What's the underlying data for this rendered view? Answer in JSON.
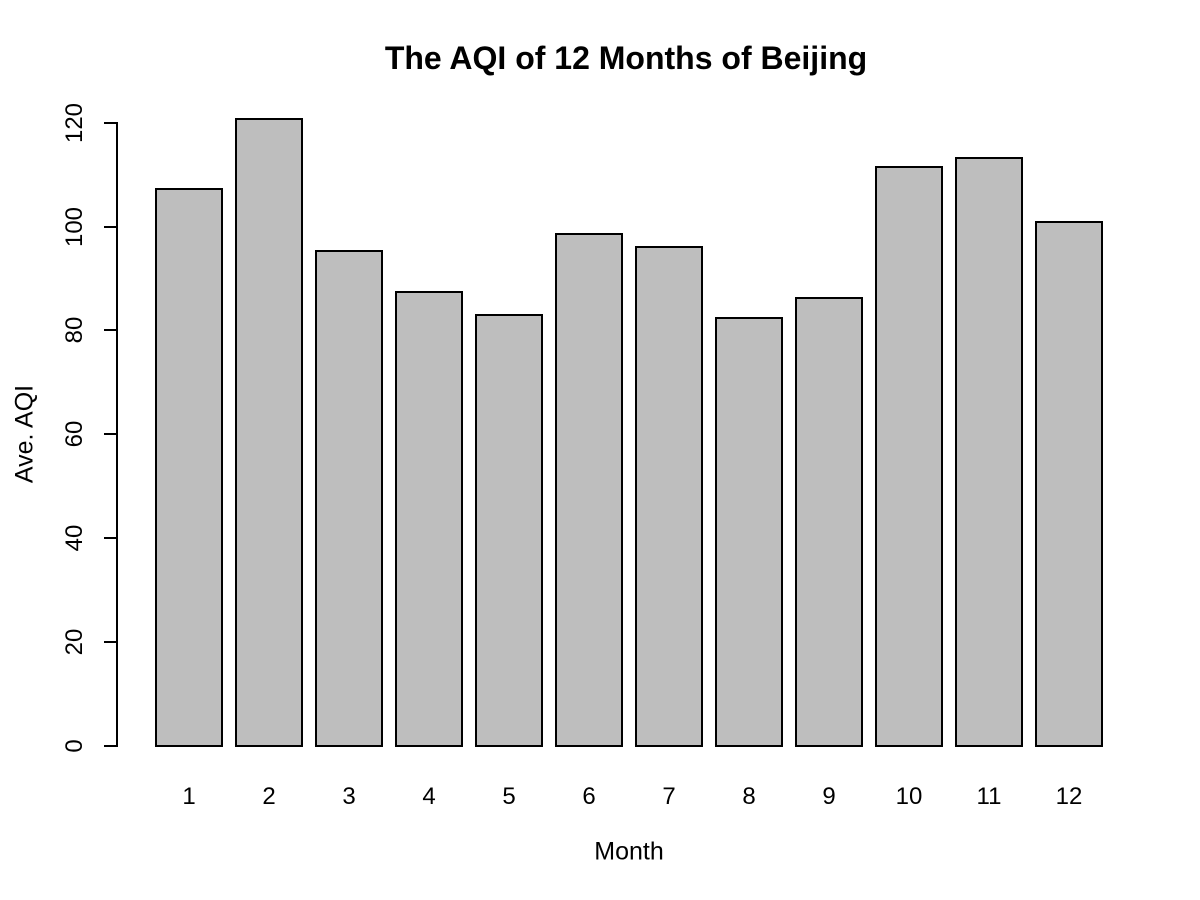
{
  "figure": {
    "background": "#FFFFFF"
  },
  "chart_data": {
    "type": "bar",
    "title": "The AQI of 12 Months of Beijing",
    "xlabel": "Month",
    "ylabel": "Ave. AQI",
    "categories": [
      "1",
      "2",
      "3",
      "4",
      "5",
      "6",
      "7",
      "8",
      "9",
      "10",
      "11",
      "12"
    ],
    "values": [
      107.4,
      120.9,
      95.4,
      87.6,
      83.1,
      98.7,
      96.3,
      82.5,
      86.5,
      111.7,
      113.3,
      101.0
    ],
    "y_ticks": [
      0,
      20,
      40,
      60,
      80,
      100,
      120
    ],
    "ylim": [
      0,
      124.8
    ],
    "grid": false,
    "legend": null,
    "bar_fill": "#BEBEBE",
    "bar_border": "#000000",
    "text_color": "#000000"
  }
}
